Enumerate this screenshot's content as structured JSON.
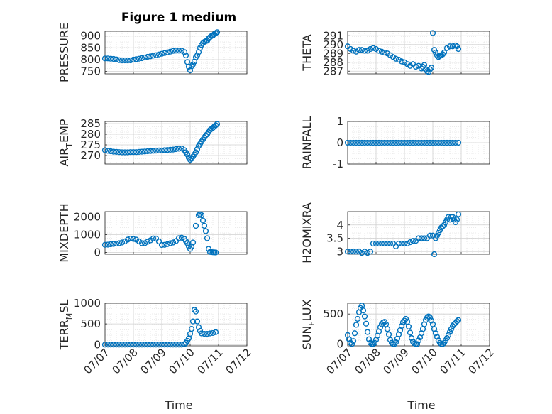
{
  "chart_data": {
    "type": "scatter",
    "title": "Figure 1 medium",
    "x_tick_labels": [
      "07/07",
      "07/08",
      "07/09",
      "07/10",
      "07/11",
      "07/12"
    ],
    "x_tick_values": [
      0,
      1,
      2,
      3,
      4,
      5
    ],
    "xlim": [
      0,
      5
    ],
    "xlabel": "Time",
    "marker_color": "#0072BD",
    "grid": "on (major and minor)",
    "panels": [
      {
        "id": "pressure",
        "ylabel": "PRESSURE",
        "ylim": [
          740,
          920
        ],
        "yticks": [
          750,
          800,
          850,
          900
        ],
        "x": [
          0,
          0.1,
          0.2,
          0.3,
          0.4,
          0.5,
          0.6,
          0.7,
          0.8,
          0.9,
          1,
          1.1,
          1.2,
          1.3,
          1.4,
          1.5,
          1.6,
          1.7,
          1.8,
          1.9,
          2,
          2.1,
          2.2,
          2.3,
          2.4,
          2.5,
          2.6,
          2.7,
          2.8,
          2.85,
          2.9,
          2.95,
          3,
          3.05,
          3.1,
          3.15,
          3.2,
          3.25,
          3.3,
          3.35,
          3.4,
          3.45,
          3.5,
          3.55,
          3.6,
          3.65,
          3.7,
          3.75,
          3.8,
          3.85,
          3.9,
          3.95
        ],
        "y": [
          805,
          805,
          804,
          803,
          801,
          798,
          797,
          797,
          797,
          797,
          800,
          802,
          804,
          806,
          809,
          812,
          814,
          817,
          819,
          822,
          825,
          828,
          831,
          834,
          837,
          838,
          838,
          838,
          832,
          818,
          790,
          770,
          755,
          772,
          780,
          792,
          810,
          818,
          832,
          850,
          862,
          870,
          875,
          878,
          880,
          889,
          895,
          900,
          902,
          908,
          912,
          916
        ]
      },
      {
        "id": "theta",
        "ylabel": "THETA",
        "ylim": [
          286.7,
          291.5
        ],
        "yticks": [
          287,
          288,
          289,
          290,
          291
        ],
        "x": [
          0,
          0.1,
          0.2,
          0.3,
          0.4,
          0.5,
          0.6,
          0.7,
          0.8,
          0.9,
          1,
          1.1,
          1.2,
          1.3,
          1.4,
          1.5,
          1.6,
          1.7,
          1.8,
          1.9,
          2,
          2.1,
          2.2,
          2.3,
          2.4,
          2.5,
          2.6,
          2.65,
          2.7,
          2.75,
          2.8,
          2.85,
          2.9,
          2.95,
          3,
          3.05,
          3.1,
          3.15,
          3.2,
          3.25,
          3.3,
          3.35,
          3.4,
          3.5,
          3.6,
          3.7,
          3.8,
          3.85,
          3.9
        ],
        "y": [
          289.8,
          289.5,
          289.3,
          289.2,
          289.4,
          289.4,
          289.3,
          289.3,
          289.5,
          289.6,
          289.5,
          289.3,
          289.2,
          289.1,
          289.0,
          288.8,
          288.6,
          288.4,
          288.3,
          288.1,
          288.0,
          287.8,
          287.6,
          287.8,
          287.5,
          287.6,
          287.3,
          287.5,
          287.7,
          287.2,
          287.0,
          286.9,
          287.2,
          287.4,
          291.3,
          289.4,
          289.1,
          288.8,
          288.6,
          288.7,
          288.8,
          288.9,
          289.1,
          289.6,
          289.8,
          289.8,
          289.9,
          289.8,
          289.5
        ]
      },
      {
        "id": "air_temp",
        "ylabel": "AIR_TEMP",
        "ylim": [
          266,
          286
        ],
        "yticks": [
          270,
          275,
          280,
          285
        ],
        "x": [
          0,
          0.1,
          0.2,
          0.3,
          0.4,
          0.5,
          0.6,
          0.7,
          0.8,
          0.9,
          1,
          1.1,
          1.2,
          1.3,
          1.4,
          1.5,
          1.6,
          1.7,
          1.8,
          1.9,
          2,
          2.1,
          2.2,
          2.3,
          2.4,
          2.5,
          2.6,
          2.7,
          2.8,
          2.85,
          2.9,
          2.95,
          3,
          3.05,
          3.1,
          3.15,
          3.2,
          3.25,
          3.3,
          3.35,
          3.4,
          3.45,
          3.5,
          3.55,
          3.6,
          3.65,
          3.7,
          3.75,
          3.8,
          3.85,
          3.9,
          3.95
        ],
        "y": [
          272.5,
          272.2,
          272.0,
          271.8,
          271.7,
          271.6,
          271.5,
          271.5,
          271.5,
          271.6,
          271.6,
          271.6,
          271.7,
          271.8,
          271.9,
          272.0,
          272.1,
          272.2,
          272.3,
          272.4,
          272.4,
          272.5,
          272.6,
          272.7,
          272.8,
          273.0,
          273.2,
          273.3,
          272.5,
          271.5,
          270.5,
          269.0,
          268.0,
          268.5,
          269.5,
          270.5,
          271.5,
          273.0,
          274.5,
          275.5,
          276.5,
          277.5,
          278.5,
          279.5,
          280.0,
          281.0,
          282.0,
          282.5,
          283.0,
          283.6,
          284.2,
          284.8
        ]
      },
      {
        "id": "rainfall",
        "ylabel": "RAINFALL",
        "ylim": [
          -1,
          1
        ],
        "yticks": [
          -1,
          0,
          1
        ],
        "x": [
          0,
          0.1,
          0.2,
          0.3,
          0.4,
          0.5,
          0.6,
          0.7,
          0.8,
          0.9,
          1,
          1.1,
          1.2,
          1.3,
          1.4,
          1.5,
          1.6,
          1.7,
          1.8,
          1.9,
          2,
          2.1,
          2.2,
          2.3,
          2.4,
          2.5,
          2.6,
          2.7,
          2.8,
          2.9,
          3,
          3.1,
          3.2,
          3.3,
          3.4,
          3.5,
          3.6,
          3.7,
          3.8,
          3.9
        ],
        "y": [
          0,
          0,
          0,
          0,
          0,
          0,
          0,
          0,
          0,
          0,
          0,
          0,
          0,
          0,
          0,
          0,
          0,
          0,
          0,
          0,
          0,
          0,
          0,
          0,
          0,
          0,
          0,
          0,
          0,
          0,
          0,
          0,
          0,
          0,
          0,
          0,
          0,
          0,
          0,
          0
        ]
      },
      {
        "id": "mixdepth",
        "ylabel": "MIXDEPTH",
        "ylim": [
          -100,
          2300
        ],
        "yticks": [
          0,
          1000,
          2000
        ],
        "x": [
          0,
          0.1,
          0.2,
          0.3,
          0.4,
          0.5,
          0.6,
          0.7,
          0.8,
          0.9,
          1,
          1.1,
          1.2,
          1.3,
          1.4,
          1.5,
          1.6,
          1.7,
          1.8,
          1.9,
          2,
          2.1,
          2.2,
          2.3,
          2.4,
          2.5,
          2.6,
          2.7,
          2.8,
          2.85,
          2.9,
          2.95,
          3,
          3.05,
          3.1,
          3.2,
          3.3,
          3.35,
          3.4,
          3.45,
          3.5,
          3.55,
          3.6,
          3.65,
          3.7,
          3.75,
          3.8,
          3.85,
          3.9
        ],
        "y": [
          430,
          440,
          460,
          480,
          500,
          520,
          560,
          620,
          720,
          780,
          760,
          720,
          620,
          520,
          520,
          600,
          680,
          790,
          780,
          620,
          420,
          430,
          470,
          520,
          560,
          640,
          800,
          830,
          760,
          640,
          520,
          350,
          200,
          330,
          560,
          1500,
          2100,
          2150,
          2100,
          1800,
          1500,
          1200,
          800,
          200,
          30,
          20,
          10,
          5,
          0
        ]
      },
      {
        "id": "h2omixra",
        "ylabel": "H2OMIXRA",
        "ylim": [
          2.9,
          4.5
        ],
        "yticks": [
          3,
          3.5,
          4
        ],
        "x": [
          0,
          0.1,
          0.2,
          0.3,
          0.4,
          0.5,
          0.6,
          0.7,
          0.8,
          0.9,
          1,
          1.1,
          1.2,
          1.3,
          1.4,
          1.5,
          1.6,
          1.7,
          1.8,
          1.9,
          2,
          2.1,
          2.2,
          2.3,
          2.4,
          2.5,
          2.6,
          2.7,
          2.8,
          2.9,
          3,
          3.05,
          3.1,
          3.15,
          3.2,
          3.25,
          3.3,
          3.35,
          3.4,
          3.45,
          3.5,
          3.55,
          3.6,
          3.65,
          3.7,
          3.75,
          3.8,
          3.85,
          3.9
        ],
        "y": [
          3.0,
          3.0,
          3.0,
          3.0,
          3.0,
          2.95,
          3.0,
          2.95,
          3.0,
          3.3,
          3.3,
          3.3,
          3.3,
          3.3,
          3.3,
          3.3,
          3.3,
          3.2,
          3.3,
          3.3,
          3.3,
          3.3,
          3.35,
          3.4,
          3.4,
          3.5,
          3.5,
          3.5,
          3.5,
          3.6,
          3.6,
          2.9,
          3.5,
          3.6,
          3.7,
          3.8,
          3.9,
          3.95,
          4.0,
          4.1,
          4.2,
          4.3,
          4.2,
          4.3,
          4.3,
          4.2,
          4.1,
          4.2,
          4.4
        ]
      },
      {
        "id": "terr_msl",
        "ylabel": "TERR_MSL",
        "ylim": [
          -30,
          1000
        ],
        "yticks": [
          0,
          500,
          1000
        ],
        "x": [
          0,
          0.1,
          0.2,
          0.3,
          0.4,
          0.5,
          0.6,
          0.7,
          0.8,
          0.9,
          1,
          1.1,
          1.2,
          1.3,
          1.4,
          1.5,
          1.6,
          1.7,
          1.8,
          1.9,
          2,
          2.1,
          2.2,
          2.3,
          2.4,
          2.5,
          2.6,
          2.7,
          2.8,
          2.85,
          2.9,
          2.95,
          3,
          3.05,
          3.1,
          3.15,
          3.2,
          3.25,
          3.3,
          3.35,
          3.4,
          3.5,
          3.6,
          3.7,
          3.8,
          3.9
        ],
        "y": [
          0,
          0,
          0,
          0,
          0,
          0,
          0,
          0,
          0,
          0,
          0,
          0,
          0,
          0,
          0,
          0,
          0,
          0,
          0,
          0,
          0,
          0,
          0,
          0,
          0,
          0,
          0,
          0,
          10,
          40,
          90,
          150,
          260,
          380,
          560,
          840,
          800,
          560,
          420,
          330,
          270,
          260,
          260,
          270,
          280,
          300
        ]
      },
      {
        "id": "sun_flux",
        "ylabel": "SUN_FLUX",
        "ylim": [
          -30,
          680
        ],
        "yticks": [
          0,
          500
        ],
        "x": [
          0,
          0.05,
          0.1,
          0.15,
          0.2,
          0.25,
          0.3,
          0.35,
          0.4,
          0.45,
          0.5,
          0.55,
          0.6,
          0.65,
          0.7,
          0.75,
          0.8,
          0.85,
          0.9,
          0.95,
          1,
          1.05,
          1.1,
          1.15,
          1.2,
          1.25,
          1.3,
          1.35,
          1.4,
          1.45,
          1.5,
          1.55,
          1.6,
          1.65,
          1.7,
          1.75,
          1.8,
          1.85,
          1.9,
          1.95,
          2,
          2.05,
          2.1,
          2.15,
          2.2,
          2.25,
          2.3,
          2.35,
          2.4,
          2.45,
          2.5,
          2.55,
          2.6,
          2.65,
          2.7,
          2.75,
          2.8,
          2.85,
          2.9,
          2.95,
          3,
          3.05,
          3.1,
          3.15,
          3.2,
          3.25,
          3.3,
          3.35,
          3.4,
          3.45,
          3.5,
          3.55,
          3.6,
          3.65,
          3.7,
          3.75,
          3.8,
          3.85,
          3.9
        ],
        "y": [
          150,
          80,
          20,
          0,
          50,
          180,
          320,
          420,
          530,
          600,
          640,
          560,
          460,
          340,
          200,
          80,
          20,
          0,
          0,
          20,
          70,
          140,
          210,
          280,
          330,
          360,
          370,
          330,
          250,
          160,
          70,
          20,
          0,
          0,
          30,
          90,
          160,
          230,
          300,
          360,
          390,
          420,
          370,
          290,
          190,
          100,
          40,
          10,
          0,
          0,
          60,
          110,
          180,
          250,
          330,
          400,
          440,
          460,
          440,
          390,
          330,
          250,
          180,
          120,
          60,
          20,
          0,
          0,
          20,
          60,
          100,
          150,
          200,
          250,
          300,
          330,
          350,
          380,
          400
        ]
      }
    ]
  }
}
